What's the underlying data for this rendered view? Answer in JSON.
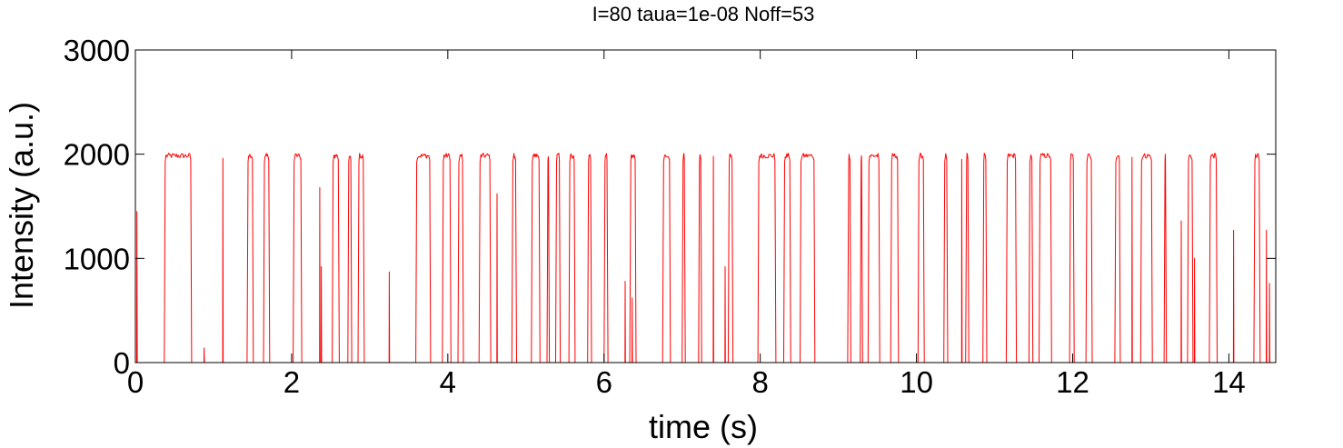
{
  "chart_data": {
    "type": "line",
    "title": "I=80 taua=1e-08 Noff=53",
    "xlabel": "time (s)",
    "ylabel": "Intensity (a.u.)",
    "xlim": [
      0,
      14.6
    ],
    "ylim": [
      0,
      3000
    ],
    "xticks": [
      0,
      2,
      4,
      6,
      8,
      10,
      12,
      14
    ],
    "yticks": [
      0,
      1000,
      2000,
      3000
    ],
    "xtick_labels": [
      "0",
      "2",
      "4",
      "6",
      "8",
      "10",
      "12",
      14
    ],
    "ytick_labels": [
      "0",
      "1000",
      "2000",
      "3000"
    ],
    "grid": false,
    "legend": "none",
    "series": [
      {
        "color": "#ff0000",
        "on_level": 1985,
        "on_intervals": [
          [
            0.37,
            0.72
          ],
          [
            1.43,
            1.51
          ],
          [
            1.64,
            1.72
          ],
          [
            2.02,
            2.13
          ],
          [
            2.52,
            2.61
          ],
          [
            2.72,
            2.77
          ],
          [
            2.85,
            2.93
          ],
          [
            3.59,
            3.78
          ],
          [
            3.93,
            4.04
          ],
          [
            4.13,
            4.2
          ],
          [
            4.4,
            4.55
          ],
          [
            4.82,
            4.88
          ],
          [
            5.07,
            5.18
          ],
          [
            5.27,
            5.3
          ],
          [
            5.38,
            5.44
          ],
          [
            5.55,
            5.63
          ],
          [
            5.79,
            5.84
          ],
          [
            6.0,
            6.05
          ],
          [
            6.33,
            6.41
          ],
          [
            6.75,
            6.85
          ],
          [
            7.0,
            7.04
          ],
          [
            7.21,
            7.25
          ],
          [
            7.59,
            7.65
          ],
          [
            7.97,
            8.2
          ],
          [
            8.3,
            8.39
          ],
          [
            8.51,
            8.7
          ],
          [
            9.12,
            9.16
          ],
          [
            9.28,
            9.31
          ],
          [
            9.38,
            9.53
          ],
          [
            9.67,
            9.77
          ],
          [
            10.02,
            10.1
          ],
          [
            10.35,
            10.4
          ],
          [
            10.63,
            10.67
          ],
          [
            10.85,
            10.9
          ],
          [
            11.15,
            11.28
          ],
          [
            11.44,
            11.49
          ],
          [
            11.57,
            11.73
          ],
          [
            11.96,
            12.02
          ],
          [
            12.17,
            12.25
          ],
          [
            12.54,
            12.61
          ],
          [
            12.87,
            13.02
          ],
          [
            13.17,
            13.2
          ],
          [
            13.47,
            13.54
          ],
          [
            13.75,
            13.85
          ],
          [
            14.32,
            14.4
          ]
        ],
        "spikes": [
          [
            0.02,
            1450
          ],
          [
            0.88,
            140
          ],
          [
            1.12,
            1960
          ],
          [
            2.36,
            1680
          ],
          [
            2.38,
            920
          ],
          [
            3.25,
            870
          ],
          [
            4.63,
            1620
          ],
          [
            6.27,
            780
          ],
          [
            6.36,
            620
          ],
          [
            7.4,
            1980
          ],
          [
            7.55,
            920
          ],
          [
            10.58,
            1950
          ],
          [
            12.76,
            1970
          ],
          [
            13.39,
            1360
          ],
          [
            13.56,
            1000
          ],
          [
            14.06,
            1270
          ],
          [
            14.48,
            1270
          ],
          [
            14.52,
            760
          ]
        ]
      }
    ]
  }
}
